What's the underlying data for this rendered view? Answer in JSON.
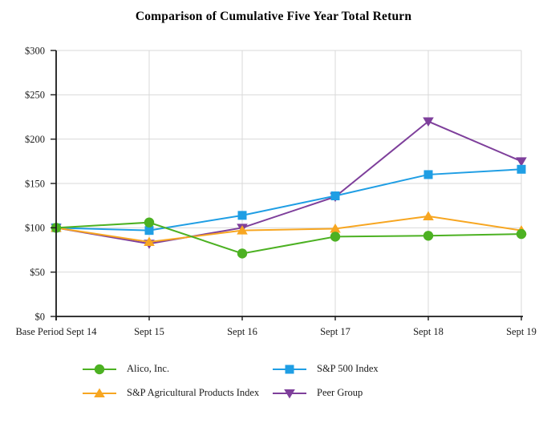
{
  "chart_data": {
    "type": "line",
    "title": "Comparison of Cumulative Five Year Total Return",
    "categories": [
      "Base Period Sept 14",
      "Sept 15",
      "Sept 16",
      "Sept 17",
      "Sept 18",
      "Sept 19"
    ],
    "series": [
      {
        "name": "Alico, Inc.",
        "marker": "circle",
        "color": "#4CB122",
        "values": [
          100,
          106,
          71,
          90,
          91,
          93
        ]
      },
      {
        "name": "S&P 500 Index",
        "marker": "square",
        "color": "#1F9EE4",
        "values": [
          100,
          97,
          114,
          136,
          160,
          166
        ]
      },
      {
        "name": "S&P Agricultural Products Index",
        "marker": "triangle-up",
        "color": "#F7A621",
        "values": [
          100,
          84,
          97,
          99,
          113,
          97
        ]
      },
      {
        "name": "Peer Group",
        "marker": "triangle-down",
        "color": "#7E3F9B",
        "values": [
          100,
          82,
          100,
          135,
          220,
          175
        ]
      }
    ],
    "ylim": [
      0,
      300
    ],
    "ytick_step": 50,
    "ytick_labels": [
      "$0",
      "$50",
      "$100",
      "$150",
      "$200",
      "$250",
      "$300"
    ],
    "grid": true,
    "legend_position": "bottom",
    "axis_color": "#1a1a1a",
    "grid_color": "#d9d9d9"
  }
}
